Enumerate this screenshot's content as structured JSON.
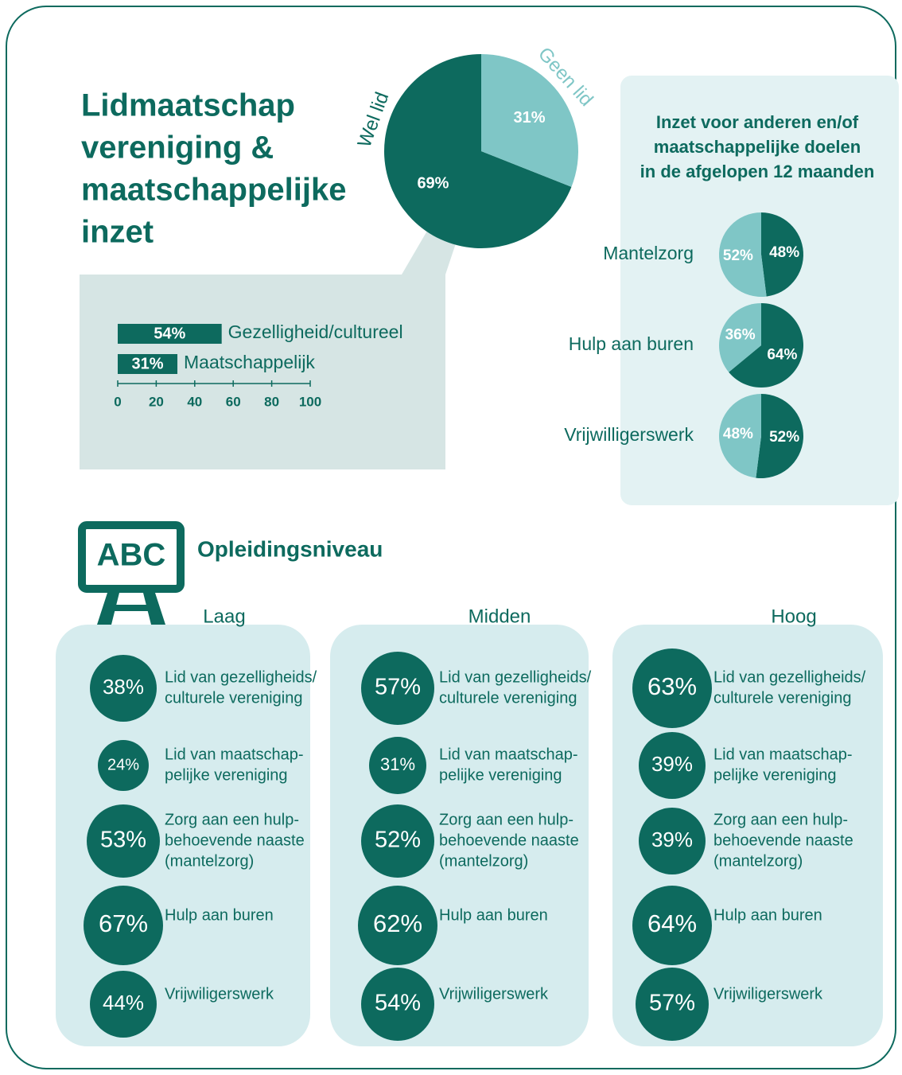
{
  "title": [
    "Lidmaatschap",
    "vereniging &",
    "maatschappelijke",
    "inzet"
  ],
  "chart_data": [
    {
      "type": "pie",
      "categories": [
        "Wel lid",
        "Geen lid"
      ],
      "values": [
        69,
        31
      ],
      "value_labels": [
        "69%",
        "31%"
      ],
      "colors": [
        "#0d6a5e",
        "#7fc6c6"
      ]
    },
    {
      "type": "bar",
      "categories": [
        "Gezelligheid/cultureel",
        "Maatschappelijk"
      ],
      "values": [
        54,
        31
      ],
      "value_labels": [
        "54%",
        "31%"
      ],
      "color": "#0d6a5e",
      "xlim": [
        0,
        100
      ],
      "xticks": [
        0,
        20,
        40,
        60,
        80,
        100
      ]
    },
    {
      "type": "pies",
      "title": [
        "Inzet voor anderen en/of",
        "maatschappelijke doelen",
        "in de afgelopen 12 maanden"
      ],
      "colors": [
        "#0d6a5e",
        "#7fc6c6"
      ],
      "pies": [
        {
          "name": "Mantelzorg",
          "values": [
            48,
            52
          ],
          "value_labels": [
            "48%",
            "52%"
          ]
        },
        {
          "name": "Hulp aan buren",
          "values": [
            64,
            36
          ],
          "value_labels": [
            "64%",
            "36%"
          ]
        },
        {
          "name": "Vrijwilligerswerk",
          "values": [
            52,
            48
          ],
          "value_labels": [
            "52%",
            "48%"
          ]
        }
      ]
    }
  ],
  "education": {
    "title": "Opleidingsniveau",
    "icon": "ABC",
    "groups": [
      {
        "name": "Laag",
        "items": [
          {
            "value": "38%",
            "label": [
              "Lid van gezelligheids/",
              "culturele vereniging"
            ]
          },
          {
            "value": "24%",
            "label": [
              "Lid van maatschap-",
              "pelijke vereniging"
            ]
          },
          {
            "value": "53%",
            "label": [
              "Zorg aan een hulp-",
              "behoevende naaste",
              "(mantelzorg)"
            ]
          },
          {
            "value": "67%",
            "label": [
              "Hulp aan buren"
            ]
          },
          {
            "value": "44%",
            "label": [
              "Vrijwiligerswerk"
            ]
          }
        ]
      },
      {
        "name": "Midden",
        "items": [
          {
            "value": "57%",
            "label": [
              "Lid van gezelligheids/",
              "culturele vereniging"
            ]
          },
          {
            "value": "31%",
            "label": [
              "Lid van maatschap-",
              "pelijke vereniging"
            ]
          },
          {
            "value": "52%",
            "label": [
              "Zorg aan een hulp-",
              "behoevende naaste",
              "(mantelzorg)"
            ]
          },
          {
            "value": "62%",
            "label": [
              "Hulp aan buren"
            ]
          },
          {
            "value": "54%",
            "label": [
              "Vrijwiligerswerk"
            ]
          }
        ]
      },
      {
        "name": "Hoog",
        "items": [
          {
            "value": "63%",
            "label": [
              "Lid van gezelligheids/",
              "culturele vereniging"
            ]
          },
          {
            "value": "39%",
            "label": [
              "Lid van maatschap-",
              "pelijke vereniging"
            ]
          },
          {
            "value": "39%",
            "label": [
              "Zorg aan een hulp-",
              "behoevende naaste",
              "(mantelzorg)"
            ]
          },
          {
            "value": "64%",
            "label": [
              "Hulp aan buren"
            ]
          },
          {
            "value": "57%",
            "label": [
              "Vrijwiligerswerk"
            ]
          }
        ]
      }
    ]
  }
}
